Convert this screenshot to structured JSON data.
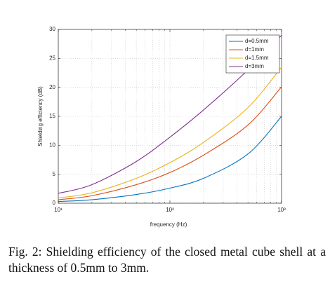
{
  "chart_data": {
    "type": "line",
    "x": [
      10,
      20,
      50,
      100,
      200,
      500,
      1000
    ],
    "series": [
      {
        "name": "d=0.5mm",
        "color": "#0072bd",
        "values": [
          0.3,
          0.6,
          1.5,
          2.6,
          4.3,
          8.5,
          15
        ]
      },
      {
        "name": "d=1mm",
        "color": "#d95319",
        "values": [
          0.6,
          1.3,
          3.2,
          5.3,
          8.3,
          13.5,
          20.1
        ]
      },
      {
        "name": "d=1.5mm",
        "color": "#edb120",
        "values": [
          0.9,
          1.8,
          4.3,
          7.0,
          10.5,
          16.5,
          23.5
        ]
      },
      {
        "name": "d=3mm",
        "color": "#7e2f8e",
        "values": [
          1.7,
          3.2,
          7.2,
          11.4,
          16.1,
          23.0,
          29.0
        ]
      }
    ],
    "xlabel": "frequency (Hz)",
    "ylabel": "Shielding efficiency (dB)",
    "xlim": [
      10,
      1000
    ],
    "ylim": [
      0,
      30
    ],
    "xticks": [
      {
        "value": 10,
        "label": "10¹"
      },
      {
        "value": 100,
        "label": "10²"
      },
      {
        "value": 1000,
        "label": "10³"
      }
    ],
    "yticks": [
      0,
      5,
      10,
      15,
      20,
      25,
      30
    ],
    "xscale": "log",
    "grid": true,
    "legend": "upper right",
    "caption": "Fig. 2: Shielding efficiency of the closed metal cube shell at a thickness of 0.5mm to 3mm."
  }
}
